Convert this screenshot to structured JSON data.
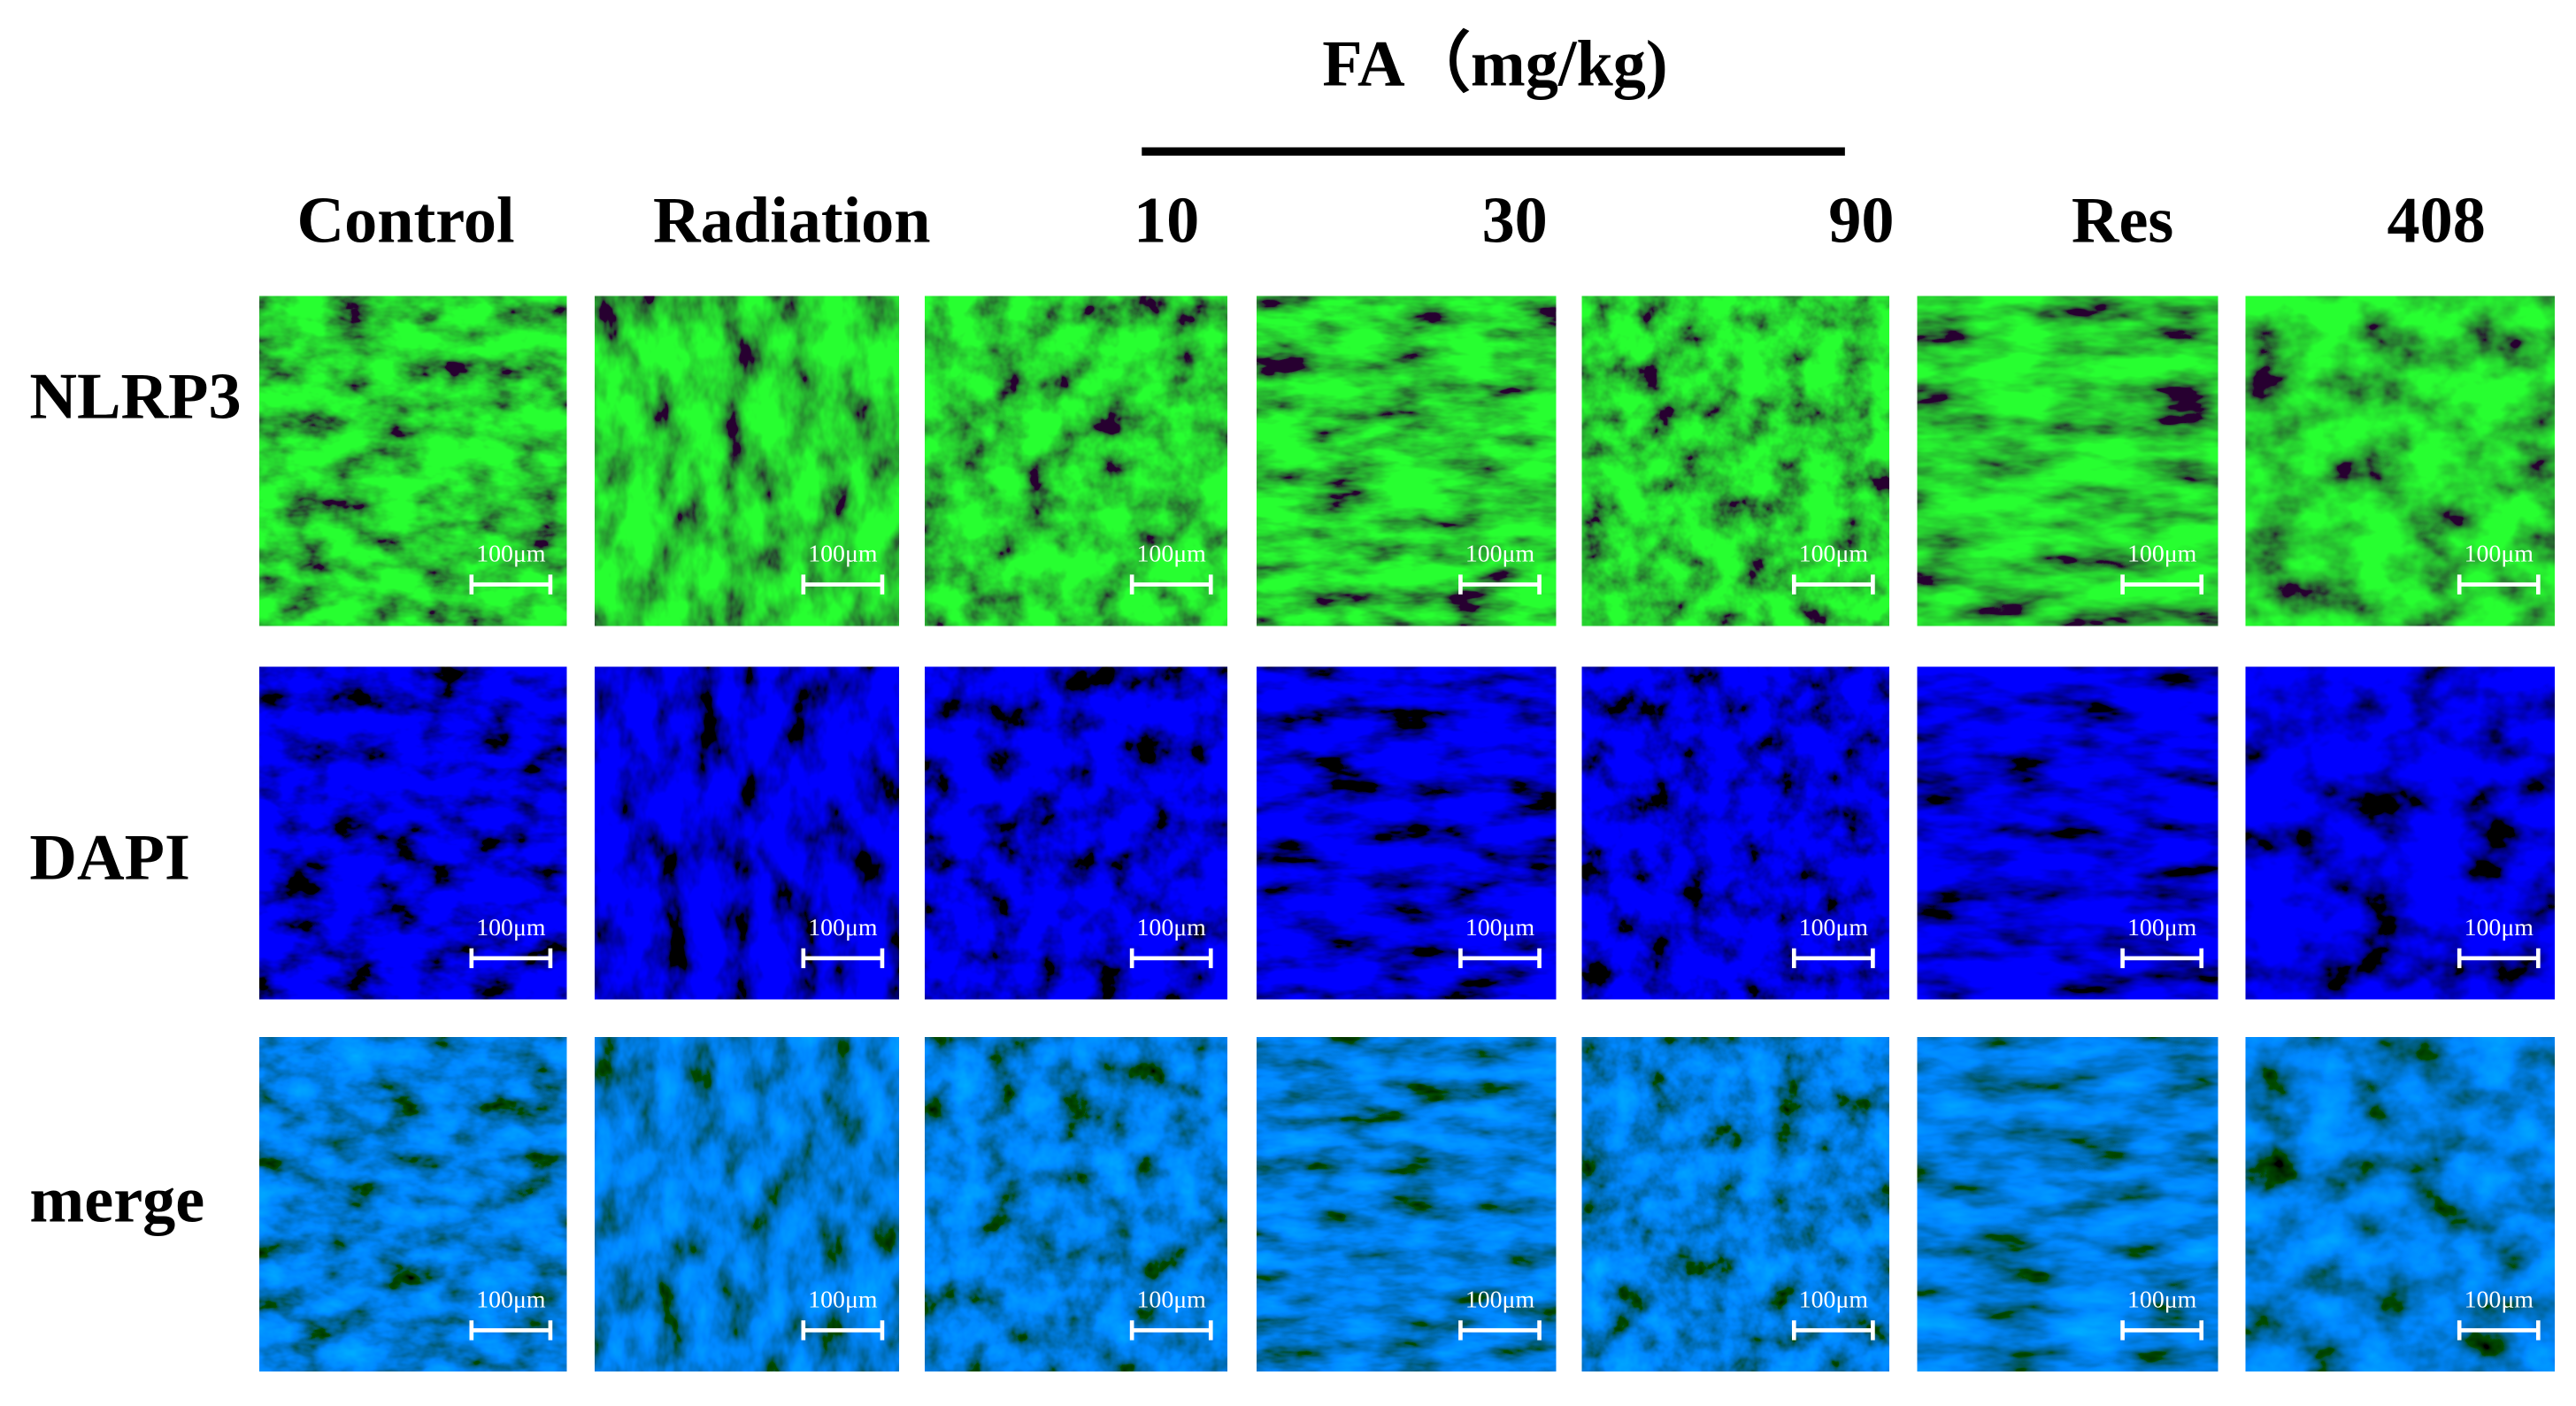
{
  "header": {
    "group_label": "FA（mg/kg)"
  },
  "columns": [
    "Control",
    "Radiation",
    "10",
    "30",
    "90",
    "Res",
    "408"
  ],
  "rows": [
    "NLRP3",
    "DAPI",
    "merge"
  ],
  "scale_bar": "100μm"
}
